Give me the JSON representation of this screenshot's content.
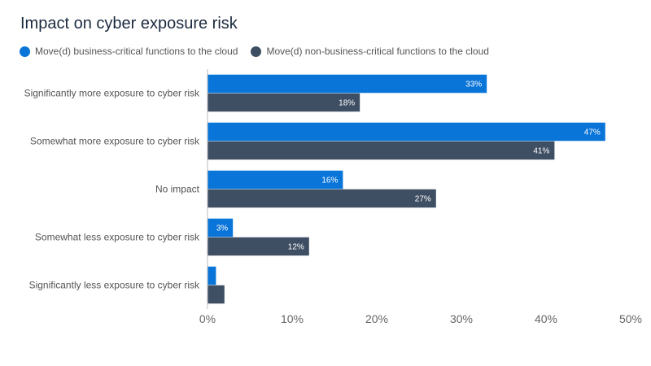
{
  "chart_data": {
    "type": "bar",
    "orientation": "horizontal",
    "title": "Impact on cyber exposure risk",
    "categories": [
      "Significantly more exposure to cyber risk",
      "Somewhat more exposure to cyber risk",
      "No impact",
      "Somewhat less exposure to cyber risk",
      "Significantly less exposure to cyber risk"
    ],
    "series": [
      {
        "name": "Move(d) business-critical functions to the cloud",
        "color": "#0a75d8",
        "values": [
          33,
          47,
          16,
          3,
          1
        ],
        "labels": [
          "33%",
          "47%",
          "16%",
          "3%",
          ""
        ]
      },
      {
        "name": "Move(d) non-business-critical functions to the cloud",
        "color": "#3e4e63",
        "values": [
          18,
          41,
          27,
          12,
          2
        ],
        "labels": [
          "18%",
          "41%",
          "27%",
          "12%",
          ""
        ]
      }
    ],
    "xlim": [
      0,
      50
    ],
    "xticks": [
      "0%",
      "10%",
      "20%",
      "30%",
      "40%",
      "50%"
    ],
    "legend_position": "top-left",
    "grid": false
  }
}
